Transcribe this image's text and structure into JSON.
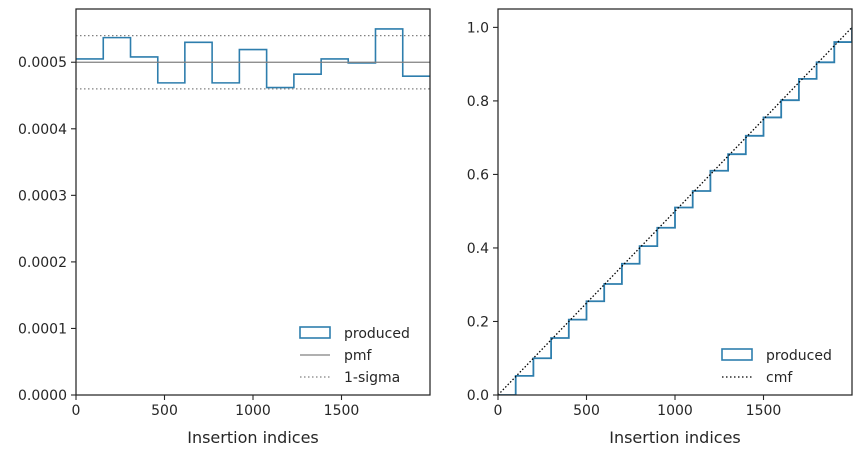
{
  "chart_data": [
    {
      "type": "histogram-step",
      "xlabel": "Insertion indices",
      "ylabel": "",
      "xlim": [
        0,
        2000
      ],
      "ylim": [
        0,
        0.00058
      ],
      "xticks": [
        0,
        500,
        1000,
        1500
      ],
      "xtick_labels": [
        "0",
        "500",
        "1000",
        "1500"
      ],
      "yticks": [
        0,
        0.0001,
        0.0002,
        0.0003,
        0.0004,
        0.0005
      ],
      "ytick_labels": [
        "0.0000",
        "0.0001",
        "0.0002",
        "0.0003",
        "0.0004",
        "0.0005"
      ],
      "grid": false,
      "legend_position": "lower-right",
      "series": [
        {
          "name": "produced",
          "style": "step",
          "color": "#2e7ead",
          "bin_edges": [
            0,
            154,
            308,
            462,
            615,
            769,
            923,
            1077,
            1231,
            1385,
            1538,
            1692,
            1846,
            2000
          ],
          "values": [
            0.000505,
            0.000537,
            0.000508,
            0.000469,
            0.00053,
            0.000469,
            0.000519,
            0.000462,
            0.000482,
            0.000505,
            0.000499,
            0.00055,
            0.000479
          ]
        },
        {
          "name": "pmf",
          "style": "hline",
          "color": "#808080",
          "value": 0.0005
        },
        {
          "name": "1-sigma",
          "style": "hline-dotted",
          "color": "#808080",
          "values": [
            0.00054,
            0.00046
          ]
        }
      ]
    },
    {
      "type": "line",
      "xlabel": "Insertion indices",
      "ylabel": "",
      "xlim": [
        0,
        2000
      ],
      "ylim": [
        0,
        1.05
      ],
      "xticks": [
        0,
        500,
        1000,
        1500
      ],
      "xtick_labels": [
        "0",
        "500",
        "1000",
        "1500"
      ],
      "yticks": [
        0,
        0.2,
        0.4,
        0.6,
        0.8,
        1.0
      ],
      "ytick_labels": [
        "0.0",
        "0.2",
        "0.4",
        "0.6",
        "0.8",
        "1.0"
      ],
      "grid": false,
      "legend_position": "lower-right",
      "series": [
        {
          "name": "produced",
          "style": "step",
          "color": "#2e7ead",
          "x": [
            0,
            100,
            200,
            300,
            400,
            500,
            600,
            700,
            800,
            900,
            1000,
            1100,
            1200,
            1300,
            1400,
            1500,
            1600,
            1700,
            1800,
            1900,
            2000
          ],
          "y": [
            0,
            0.052,
            0.1,
            0.155,
            0.205,
            0.255,
            0.302,
            0.357,
            0.405,
            0.455,
            0.51,
            0.555,
            0.61,
            0.655,
            0.705,
            0.755,
            0.802,
            0.86,
            0.905,
            0.96,
            1.0
          ]
        },
        {
          "name": "cmf",
          "style": "dotted",
          "color": "#000000",
          "x": [
            0,
            2000
          ],
          "y": [
            0,
            1.0
          ]
        }
      ]
    }
  ]
}
